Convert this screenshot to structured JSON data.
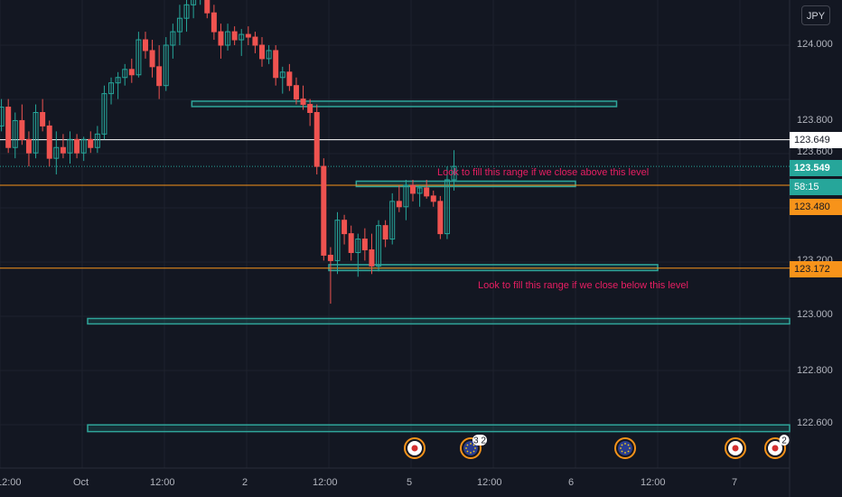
{
  "currency_button": "JPY",
  "colors": {
    "background": "#131722",
    "up_candle": "#26a69a",
    "down_candle": "#ef5350",
    "zone_stroke": "#2fa59a",
    "orange_level": "#f7931a",
    "white_level": "#ffffff",
    "annotation_text": "#e91e63"
  },
  "price_tags": {
    "white_level": "123.649",
    "current_price": "123.549",
    "countdown": "58:15",
    "orange_upper": "123.480",
    "orange_lower": "123.172"
  },
  "annotations": {
    "upper": "Look to fill this range if we close above this level",
    "lower": "Look to fill this range if we close below this level"
  },
  "event_badges": [
    "3 2",
    "2"
  ],
  "chart_data": {
    "type": "candlestick",
    "title": "",
    "instrument_quote": "JPY",
    "ylim": [
      122.47,
      124.29
    ],
    "y_ticks": [
      "124.000",
      "123.800",
      "123.600",
      "123.200",
      "123.000",
      "122.800",
      "122.600"
    ],
    "x_ticks": [
      "12:00",
      "Oct",
      "12:00",
      "2",
      "12:00",
      "5",
      "12:00",
      "6",
      "12:00",
      "7"
    ],
    "grid": true,
    "levels": [
      {
        "price": 123.649,
        "color": "white"
      },
      {
        "price": 123.48,
        "color": "orange"
      },
      {
        "price": 123.172,
        "color": "orange"
      }
    ],
    "zones": [
      {
        "from": 123.772,
        "to": 123.792,
        "start": "Oct 1 16:00",
        "end": "Oct 6 06:00"
      },
      {
        "from": 123.475,
        "to": 123.495,
        "start": "Oct 2 16:00",
        "end": "Oct 6 00:00"
      },
      {
        "from": 123.163,
        "to": 123.185,
        "start": "Oct 2 12:00",
        "end": "Oct 6 12:00"
      },
      {
        "from": 122.965,
        "to": 122.985,
        "start": "Sep 30 12:00",
        "end": "Oct 7 12:00"
      },
      {
        "from": 122.565,
        "to": 122.59,
        "start": "Sep 30 12:00",
        "end": "Oct 7 12:00"
      }
    ],
    "candles_ohlc": [
      [
        123.82,
        123.86,
        123.69,
        123.7
      ],
      [
        123.7,
        123.8,
        123.68,
        123.77
      ],
      [
        123.77,
        123.8,
        123.6,
        123.62
      ],
      [
        123.62,
        123.75,
        123.58,
        123.72
      ],
      [
        123.72,
        123.78,
        123.63,
        123.65
      ],
      [
        123.65,
        123.68,
        123.55,
        123.6
      ],
      [
        123.6,
        123.78,
        123.58,
        123.75
      ],
      [
        123.75,
        123.8,
        123.68,
        123.7
      ],
      [
        123.7,
        123.72,
        123.55,
        123.58
      ],
      [
        123.58,
        123.68,
        123.52,
        123.62
      ],
      [
        123.62,
        123.67,
        123.58,
        123.6
      ],
      [
        123.6,
        123.68,
        123.56,
        123.65
      ],
      [
        123.65,
        123.67,
        123.58,
        123.6
      ],
      [
        123.6,
        123.66,
        123.57,
        123.65
      ],
      [
        123.65,
        123.68,
        123.6,
        123.62
      ],
      [
        123.62,
        123.7,
        123.6,
        123.67
      ],
      [
        123.67,
        123.85,
        123.65,
        123.82
      ],
      [
        123.82,
        123.88,
        123.78,
        123.86
      ],
      [
        123.86,
        123.9,
        123.8,
        123.88
      ],
      [
        123.88,
        123.93,
        123.85,
        123.91
      ],
      [
        123.91,
        123.95,
        123.86,
        123.89
      ],
      [
        123.89,
        124.05,
        123.88,
        124.02
      ],
      [
        124.02,
        124.05,
        123.95,
        123.98
      ],
      [
        123.98,
        124.02,
        123.88,
        123.92
      ],
      [
        123.92,
        124.0,
        123.8,
        123.85
      ],
      [
        123.85,
        124.03,
        123.83,
        124.0
      ],
      [
        124.0,
        124.08,
        123.95,
        124.05
      ],
      [
        124.05,
        124.15,
        124.0,
        124.1
      ],
      [
        124.1,
        124.18,
        124.05,
        124.15
      ],
      [
        124.15,
        124.25,
        124.1,
        124.2
      ],
      [
        124.2,
        124.28,
        124.15,
        124.23
      ],
      [
        124.23,
        124.26,
        124.1,
        124.12
      ],
      [
        124.12,
        124.15,
        124.02,
        124.05
      ],
      [
        124.05,
        124.08,
        123.95,
        124.0
      ],
      [
        124.0,
        124.08,
        123.98,
        124.05
      ],
      [
        124.05,
        124.07,
        124.0,
        124.02
      ],
      [
        124.02,
        124.06,
        123.96,
        124.04
      ],
      [
        124.04,
        124.07,
        124.0,
        124.03
      ],
      [
        124.03,
        124.05,
        123.97,
        124.0
      ],
      [
        124.0,
        124.03,
        123.92,
        123.95
      ],
      [
        123.95,
        124.0,
        123.93,
        123.98
      ],
      [
        123.98,
        124.0,
        123.85,
        123.88
      ],
      [
        123.88,
        123.92,
        123.82,
        123.9
      ],
      [
        123.9,
        123.93,
        123.83,
        123.85
      ],
      [
        123.85,
        123.88,
        123.78,
        123.8
      ],
      [
        123.8,
        123.85,
        123.76,
        123.78
      ],
      [
        123.78,
        123.8,
        123.7,
        123.75
      ],
      [
        123.75,
        123.78,
        123.52,
        123.55
      ],
      [
        123.55,
        123.58,
        123.2,
        123.22
      ],
      [
        123.22,
        123.25,
        123.04,
        123.2
      ],
      [
        123.2,
        123.38,
        123.15,
        123.35
      ],
      [
        123.35,
        123.37,
        123.26,
        123.3
      ],
      [
        123.3,
        123.33,
        123.2,
        123.23
      ],
      [
        123.23,
        123.3,
        123.14,
        123.28
      ],
      [
        123.28,
        123.32,
        123.2,
        123.24
      ],
      [
        123.24,
        123.3,
        123.15,
        123.18
      ],
      [
        123.18,
        123.35,
        123.16,
        123.33
      ],
      [
        123.33,
        123.35,
        123.25,
        123.28
      ],
      [
        123.28,
        123.45,
        123.26,
        123.42
      ],
      [
        123.42,
        123.48,
        123.38,
        123.4
      ],
      [
        123.4,
        123.5,
        123.35,
        123.48
      ],
      [
        123.48,
        123.5,
        123.42,
        123.45
      ],
      [
        123.45,
        123.48,
        123.4,
        123.47
      ],
      [
        123.47,
        123.5,
        123.43,
        123.44
      ],
      [
        123.44,
        123.46,
        123.4,
        123.42
      ],
      [
        123.42,
        123.44,
        123.28,
        123.3
      ],
      [
        123.3,
        123.55,
        123.28,
        123.5
      ],
      [
        123.5,
        123.61,
        123.46,
        123.55
      ]
    ]
  }
}
